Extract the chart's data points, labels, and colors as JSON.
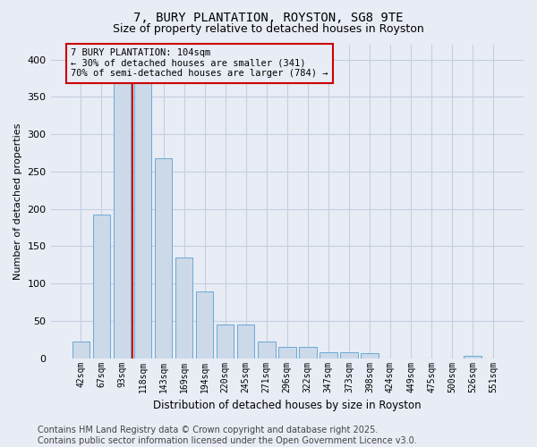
{
  "title": "7, BURY PLANTATION, ROYSTON, SG8 9TE",
  "subtitle": "Size of property relative to detached houses in Royston",
  "xlabel": "Distribution of detached houses by size in Royston",
  "ylabel": "Number of detached properties",
  "categories": [
    "42sqm",
    "67sqm",
    "93sqm",
    "118sqm",
    "143sqm",
    "169sqm",
    "194sqm",
    "220sqm",
    "245sqm",
    "271sqm",
    "296sqm",
    "322sqm",
    "347sqm",
    "373sqm",
    "398sqm",
    "424sqm",
    "449sqm",
    "475sqm",
    "500sqm",
    "526sqm",
    "551sqm"
  ],
  "bar_heights": [
    22,
    193,
    370,
    370,
    268,
    135,
    90,
    45,
    45,
    22,
    15,
    15,
    8,
    8,
    7,
    0,
    0,
    0,
    0,
    3,
    0
  ],
  "bar_color": "#ccd9e8",
  "bar_edge_color": "#6aaad4",
  "grid_color": "#c5cfe0",
  "bg_color": "#e8ecf5",
  "vline_color": "#cc0000",
  "vline_pos": 2.5,
  "annotation_text": "7 BURY PLANTATION: 104sqm\n← 30% of detached houses are smaller (341)\n70% of semi-detached houses are larger (784) →",
  "annotation_box_color": "#cc0000",
  "ylim": [
    0,
    420
  ],
  "yticks": [
    0,
    50,
    100,
    150,
    200,
    250,
    300,
    350,
    400
  ],
  "footer": "Contains HM Land Registry data © Crown copyright and database right 2025.\nContains public sector information licensed under the Open Government Licence v3.0.",
  "title_fontsize": 10,
  "subtitle_fontsize": 9,
  "footer_fontsize": 7,
  "annotation_fontsize": 7.5
}
